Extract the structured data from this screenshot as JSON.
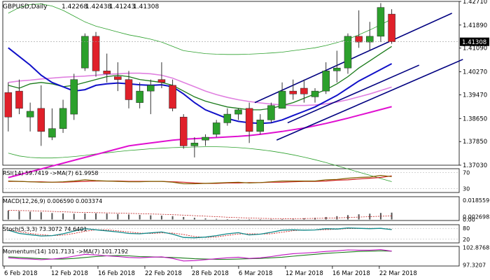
{
  "chart_data": {
    "type": "candlestick",
    "title": "GBPUSD,Daily",
    "ohlc_header": [
      "1.42268",
      "1.42438",
      "1.41243",
      "1.41308"
    ],
    "current_price_label": "1.41308",
    "main_price_ticks": [
      "1.42710",
      "1.41890",
      "1.41090",
      "1.40270",
      "1.39470",
      "1.38650",
      "1.37850",
      "1.37030"
    ],
    "main_ylim": [
      1.3703,
      1.4271
    ],
    "x_labels": [
      "6 Feb 2018",
      "12 Feb 2018",
      "16 Feb 2018",
      "22 Feb 2018",
      "28 Feb 2018",
      "6 Mar 2018",
      "12 Mar 2018",
      "16 Mar 2018",
      "22 Mar 2018"
    ],
    "colors": {
      "bull": "#2ca02c",
      "bear": "#e0202a",
      "wick": "#333333",
      "ma_blue": "#1010c8",
      "ma_magenta": "#e010d0",
      "ma_green": "#1a7a1a",
      "bollinger": "#2ca02c",
      "trendline": "#000080",
      "pink_ma": "#e080e0"
    },
    "candles": [
      {
        "o": 1.3955,
        "h": 1.399,
        "l": 1.382,
        "c": 1.387
      },
      {
        "o": 1.396,
        "h": 1.4,
        "l": 1.388,
        "c": 1.39
      },
      {
        "o": 1.387,
        "h": 1.392,
        "l": 1.382,
        "c": 1.389
      },
      {
        "o": 1.39,
        "h": 1.398,
        "l": 1.377,
        "c": 1.382
      },
      {
        "o": 1.38,
        "h": 1.39,
        "l": 1.379,
        "c": 1.383
      },
      {
        "o": 1.383,
        "h": 1.393,
        "l": 1.3815,
        "c": 1.39
      },
      {
        "o": 1.388,
        "h": 1.402,
        "l": 1.386,
        "c": 1.4
      },
      {
        "o": 1.404,
        "h": 1.416,
        "l": 1.403,
        "c": 1.415
      },
      {
        "o": 1.415,
        "h": 1.4165,
        "l": 1.401,
        "c": 1.403
      },
      {
        "o": 1.403,
        "h": 1.409,
        "l": 1.399,
        "c": 1.402
      },
      {
        "o": 1.401,
        "h": 1.406,
        "l": 1.396,
        "c": 1.4
      },
      {
        "o": 1.4,
        "h": 1.403,
        "l": 1.39,
        "c": 1.393
      },
      {
        "o": 1.392,
        "h": 1.399,
        "l": 1.39,
        "c": 1.396
      },
      {
        "o": 1.396,
        "h": 1.4,
        "l": 1.388,
        "c": 1.398
      },
      {
        "o": 1.4,
        "h": 1.406,
        "l": 1.397,
        "c": 1.399
      },
      {
        "o": 1.398,
        "h": 1.4,
        "l": 1.389,
        "c": 1.39
      },
      {
        "o": 1.387,
        "h": 1.388,
        "l": 1.376,
        "c": 1.377
      },
      {
        "o": 1.377,
        "h": 1.38,
        "l": 1.373,
        "c": 1.378
      },
      {
        "o": 1.379,
        "h": 1.381,
        "l": 1.377,
        "c": 1.38
      },
      {
        "o": 1.381,
        "h": 1.386,
        "l": 1.38,
        "c": 1.385
      },
      {
        "o": 1.385,
        "h": 1.39,
        "l": 1.384,
        "c": 1.388
      },
      {
        "o": 1.388,
        "h": 1.39,
        "l": 1.386,
        "c": 1.3895
      },
      {
        "o": 1.39,
        "h": 1.392,
        "l": 1.378,
        "c": 1.382
      },
      {
        "o": 1.382,
        "h": 1.388,
        "l": 1.381,
        "c": 1.386
      },
      {
        "o": 1.386,
        "h": 1.392,
        "l": 1.385,
        "c": 1.391
      },
      {
        "o": 1.39,
        "h": 1.399,
        "l": 1.39,
        "c": 1.396
      },
      {
        "o": 1.396,
        "h": 1.4,
        "l": 1.393,
        "c": 1.395
      },
      {
        "o": 1.397,
        "h": 1.4,
        "l": 1.392,
        "c": 1.395
      },
      {
        "o": 1.394,
        "h": 1.397,
        "l": 1.392,
        "c": 1.396
      },
      {
        "o": 1.396,
        "h": 1.406,
        "l": 1.395,
        "c": 1.403
      },
      {
        "o": 1.403,
        "h": 1.41,
        "l": 1.399,
        "c": 1.404
      },
      {
        "o": 1.404,
        "h": 1.416,
        "l": 1.402,
        "c": 1.415
      },
      {
        "o": 1.415,
        "h": 1.424,
        "l": 1.411,
        "c": 1.413
      },
      {
        "o": 1.413,
        "h": 1.42,
        "l": 1.41,
        "c": 1.415
      },
      {
        "o": 1.415,
        "h": 1.4265,
        "l": 1.413,
        "c": 1.425
      },
      {
        "o": 1.4227,
        "h": 1.4244,
        "l": 1.4124,
        "c": 1.4131
      }
    ],
    "ma_blue": [
      1.411,
      1.408,
      1.405,
      1.4015,
      1.399,
      1.3975,
      1.396,
      1.3965,
      1.398,
      1.3985,
      1.3988,
      1.3985,
      1.3982,
      1.398,
      1.3982,
      1.3975,
      1.395,
      1.392,
      1.3895,
      1.388,
      1.3865,
      1.3855,
      1.385,
      1.3848,
      1.385,
      1.386,
      1.3875,
      1.389,
      1.3905,
      1.3925,
      1.3945,
      1.397,
      1.3995,
      1.4015,
      1.4035,
      1.4055
    ],
    "ma_green": [
      1.398,
      1.397,
      1.3985,
      1.399,
      1.3985,
      1.3975,
      1.398,
      1.399,
      1.4,
      1.401,
      1.4015,
      1.401,
      1.4,
      1.3995,
      1.399,
      1.398,
      1.396,
      1.394,
      1.3925,
      1.3915,
      1.3905,
      1.39,
      1.3895,
      1.3895,
      1.39,
      1.391,
      1.392,
      1.3935,
      1.395,
      1.3965,
      1.3985,
      1.401,
      1.404,
      1.4065,
      1.409,
      1.4115
    ],
    "ma_magenta": [
      1.366,
      1.367,
      1.368,
      1.369,
      1.37,
      1.371,
      1.372,
      1.373,
      1.374,
      1.375,
      1.376,
      1.377,
      1.3775,
      1.378,
      1.3785,
      1.379,
      1.3793,
      1.3795,
      1.3797,
      1.3799,
      1.3801,
      1.3803,
      1.3806,
      1.381,
      1.3815,
      1.382,
      1.3826,
      1.3832,
      1.384,
      1.3848,
      1.3857,
      1.3866,
      1.3876,
      1.3886,
      1.3896,
      1.3906
    ],
    "pink_ma": [
      1.399,
      1.3995,
      1.3998,
      1.4002,
      1.4005,
      1.4008,
      1.401,
      1.4012,
      1.4015,
      1.4018,
      1.402,
      1.4022,
      1.4022,
      1.402,
      1.4015,
      1.4005,
      1.399,
      1.3975,
      1.396,
      1.3948,
      1.3938,
      1.393,
      1.3924,
      1.3919,
      1.3915,
      1.3912,
      1.391,
      1.391,
      1.3912,
      1.3916,
      1.3922,
      1.393,
      1.394,
      1.395,
      1.3962,
      1.3974
    ],
    "bb_upper": [
      1.423,
      1.425,
      1.426,
      1.4262,
      1.4255,
      1.424,
      1.422,
      1.42,
      1.4185,
      1.4175,
      1.4165,
      1.4155,
      1.4148,
      1.414,
      1.413,
      1.4115,
      1.41,
      1.4095,
      1.409,
      1.4088,
      1.4087,
      1.4087,
      1.4088,
      1.409,
      1.4092,
      1.4095,
      1.41,
      1.4105,
      1.411,
      1.4118,
      1.4128,
      1.414,
      1.4155,
      1.4172,
      1.419,
      1.421
    ],
    "bb_lower": [
      1.3745,
      1.3735,
      1.373,
      1.3728,
      1.3728,
      1.373,
      1.3733,
      1.3737,
      1.3742,
      1.3746,
      1.375,
      1.3754,
      1.3757,
      1.376,
      1.3762,
      1.3764,
      1.3765,
      1.3766,
      1.3767,
      1.3767,
      1.3766,
      1.3764,
      1.3761,
      1.3757,
      1.3752,
      1.3746,
      1.3739,
      1.3731,
      1.3722,
      1.3712,
      1.3701,
      1.369,
      1.3679,
      1.3668,
      1.3657,
      1.3646
    ],
    "trendlines": [
      {
        "x1": 22.5,
        "y1": 1.392,
        "x2": 40.5,
        "y2": 1.423
      },
      {
        "x1": 24.5,
        "y1": 1.379,
        "x2": 41.5,
        "y2": 1.407
      },
      {
        "x1": 25.5,
        "y1": 1.385,
        "x2": 37.5,
        "y2": 1.405
      }
    ],
    "rsi": {
      "label": "RSI(14) 59.7419 ->MA(7) 61.9958",
      "ticks": [
        "70",
        "30"
      ],
      "ylim": [
        20,
        80
      ],
      "values": [
        49,
        48,
        47,
        46,
        46,
        47,
        49,
        52,
        50,
        49,
        48,
        47,
        47,
        48,
        48,
        46,
        42,
        42,
        43,
        44,
        45,
        46,
        44,
        45,
        47,
        49,
        49,
        49,
        49,
        52,
        53,
        56,
        58,
        59,
        63,
        60
      ],
      "ma_values": [
        48,
        48,
        47,
        47,
        46,
        46,
        47,
        48,
        49,
        49,
        49,
        48,
        48,
        48,
        48,
        47,
        46,
        44,
        43,
        43,
        44,
        44,
        45,
        45,
        46,
        46,
        47,
        48,
        48,
        49,
        51,
        52,
        54,
        56,
        58,
        62
      ]
    },
    "macd": {
      "label": "MACD(12,26,9) 0.006590 0.003374",
      "ticks": [
        "0.018559",
        "0.00269833",
        "0.00"
      ],
      "ylim": [
        -0.001,
        0.022
      ],
      "hist": [
        0.0085,
        0.008,
        0.0075,
        0.007,
        0.0062,
        0.0058,
        0.0055,
        0.0058,
        0.006,
        0.0057,
        0.0053,
        0.0048,
        0.0044,
        0.004,
        0.0037,
        0.0032,
        0.0024,
        0.0016,
        0.001,
        0.0006,
        0.0003,
        0.0001,
        -0.0001,
        -0.0002,
        -0.0001,
        0.0001,
        0.0006,
        0.0011,
        0.0016,
        0.0024,
        0.0032,
        0.0042,
        0.005,
        0.0056,
        0.0063,
        0.0066
      ],
      "signal": [
        0.0088,
        0.0086,
        0.0084,
        0.0082,
        0.0078,
        0.0074,
        0.007,
        0.0068,
        0.0066,
        0.0064,
        0.0062,
        0.0059,
        0.0056,
        0.0053,
        0.005,
        0.0046,
        0.0042,
        0.0037,
        0.0032,
        0.0027,
        0.0022,
        0.0018,
        0.0014,
        0.0011,
        0.0009,
        0.0008,
        0.0008,
        0.0009,
        0.001,
        0.0012,
        0.0015,
        0.0019,
        0.0023,
        0.0027,
        0.0031,
        0.0034
      ]
    },
    "stoch": {
      "label": "Stoch(5,3,3) 73.3072 74.6401",
      "ticks": [
        "80",
        "20"
      ],
      "ylim": [
        0,
        100
      ],
      "k": [
        70,
        52,
        45,
        38,
        40,
        50,
        65,
        78,
        72,
        66,
        60,
        52,
        50,
        55,
        60,
        48,
        30,
        28,
        32,
        40,
        50,
        56,
        44,
        48,
        58,
        70,
        72,
        70,
        71,
        78,
        76,
        82,
        80,
        78,
        80,
        73
      ],
      "d": [
        72,
        62,
        52,
        45,
        40,
        43,
        52,
        64,
        72,
        72,
        66,
        60,
        54,
        52,
        55,
        54,
        46,
        35,
        30,
        33,
        41,
        49,
        50,
        49,
        50,
        59,
        67,
        71,
        71,
        73,
        75,
        79,
        79,
        80,
        79,
        75
      ]
    },
    "momentum": {
      "label": "Momentum(14) 101.7131 ->MA(7) 101.7192",
      "ticks": [
        "102.8768",
        "97.3207"
      ],
      "ylim": [
        97.0,
        103.2
      ],
      "values": [
        99.6,
        99.3,
        99.2,
        99.0,
        99.2,
        99.5,
        100.1,
        100.7,
        100.5,
        100.2,
        100.0,
        99.7,
        99.6,
        99.8,
        99.9,
        99.4,
        98.6,
        98.7,
        99.0,
        99.3,
        99.6,
        99.8,
        99.4,
        99.6,
        100.0,
        100.5,
        100.9,
        101.1,
        101.3,
        101.6,
        101.8,
        102.1,
        102.0,
        102.0,
        102.2,
        101.7
      ],
      "ma_values": [
        99.9,
        99.7,
        99.5,
        99.3,
        99.2,
        99.2,
        99.4,
        99.7,
        100.0,
        100.2,
        100.3,
        100.2,
        100.0,
        99.9,
        99.8,
        99.7,
        99.5,
        99.3,
        99.2,
        99.1,
        99.1,
        99.2,
        99.3,
        99.4,
        99.6,
        99.8,
        100.1,
        100.4,
        100.7,
        101.0,
        101.2,
        101.4,
        101.6,
        101.7,
        101.8,
        101.7
      ]
    }
  }
}
